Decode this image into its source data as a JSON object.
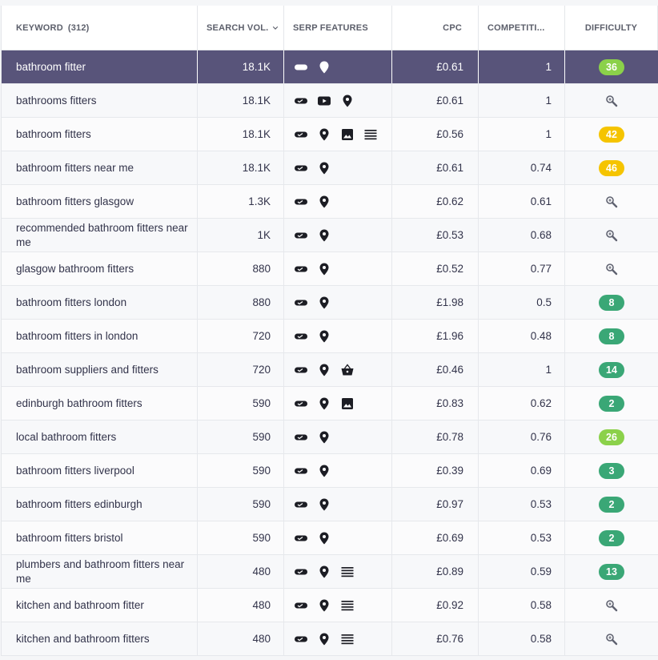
{
  "header": {
    "keyword_label": "KEYWORD",
    "keyword_count": "(312)",
    "search_vol_label": "SEARCH VOL.",
    "serp_label": "SERP FEATURES",
    "cpc_label": "CPC",
    "competition_label": "COMPETITI...",
    "difficulty_label": "DIFFICULTY"
  },
  "colors": {
    "selected_row": "#58547a",
    "badge_green_dark": "#3aa776",
    "badge_green_light": "#8bd14a",
    "badge_yellow": "#f5c400"
  },
  "rows": [
    {
      "keyword": "bathroom fitter",
      "volume": "18.1K",
      "serp": [
        "sitelinks-icon",
        "local-pack-icon"
      ],
      "cpc": "£0.61",
      "competition": "1",
      "difficulty": "36",
      "difficulty_color": "#8bd14a",
      "selected": true
    },
    {
      "keyword": "bathrooms fitters",
      "volume": "18.1K",
      "serp": [
        "sitelinks-icon",
        "video-icon",
        "local-pack-icon"
      ],
      "cpc": "£0.61",
      "competition": "1",
      "difficulty": "",
      "difficulty_color": ""
    },
    {
      "keyword": "bathroom fitters",
      "volume": "18.1K",
      "serp": [
        "sitelinks-icon",
        "local-pack-icon",
        "image-icon",
        "list-icon"
      ],
      "cpc": "£0.56",
      "competition": "1",
      "difficulty": "42",
      "difficulty_color": "#f5c400"
    },
    {
      "keyword": "bathroom fitters near me",
      "volume": "18.1K",
      "serp": [
        "sitelinks-icon",
        "local-pack-icon"
      ],
      "cpc": "£0.61",
      "competition": "0.74",
      "difficulty": "46",
      "difficulty_color": "#f5c400"
    },
    {
      "keyword": "bathroom fitters glasgow",
      "volume": "1.3K",
      "serp": [
        "sitelinks-icon",
        "local-pack-icon"
      ],
      "cpc": "£0.62",
      "competition": "0.61",
      "difficulty": "",
      "difficulty_color": ""
    },
    {
      "keyword": "recommended bathroom fitters near me",
      "volume": "1K",
      "serp": [
        "sitelinks-icon",
        "local-pack-icon"
      ],
      "cpc": "£0.53",
      "competition": "0.68",
      "difficulty": "",
      "difficulty_color": ""
    },
    {
      "keyword": "glasgow bathroom fitters",
      "volume": "880",
      "serp": [
        "sitelinks-icon",
        "local-pack-icon"
      ],
      "cpc": "£0.52",
      "competition": "0.77",
      "difficulty": "",
      "difficulty_color": ""
    },
    {
      "keyword": "bathroom fitters london",
      "volume": "880",
      "serp": [
        "sitelinks-icon",
        "local-pack-icon"
      ],
      "cpc": "£1.98",
      "competition": "0.5",
      "difficulty": "8",
      "difficulty_color": "#3aa776"
    },
    {
      "keyword": "bathroom fitters in london",
      "volume": "720",
      "serp": [
        "sitelinks-icon",
        "local-pack-icon"
      ],
      "cpc": "£1.96",
      "competition": "0.48",
      "difficulty": "8",
      "difficulty_color": "#3aa776"
    },
    {
      "keyword": "bathroom suppliers and fitters",
      "volume": "720",
      "serp": [
        "sitelinks-icon",
        "local-pack-icon",
        "shopping-icon"
      ],
      "cpc": "£0.46",
      "competition": "1",
      "difficulty": "14",
      "difficulty_color": "#3aa776"
    },
    {
      "keyword": "edinburgh bathroom fitters",
      "volume": "590",
      "serp": [
        "sitelinks-icon",
        "local-pack-icon",
        "image-icon"
      ],
      "cpc": "£0.83",
      "competition": "0.62",
      "difficulty": "2",
      "difficulty_color": "#3aa776"
    },
    {
      "keyword": "local bathroom fitters",
      "volume": "590",
      "serp": [
        "sitelinks-icon",
        "local-pack-icon"
      ],
      "cpc": "£0.78",
      "competition": "0.76",
      "difficulty": "26",
      "difficulty_color": "#8bd14a"
    },
    {
      "keyword": "bathroom fitters liverpool",
      "volume": "590",
      "serp": [
        "sitelinks-icon",
        "local-pack-icon"
      ],
      "cpc": "£0.39",
      "competition": "0.69",
      "difficulty": "3",
      "difficulty_color": "#3aa776"
    },
    {
      "keyword": "bathroom fitters edinburgh",
      "volume": "590",
      "serp": [
        "sitelinks-icon",
        "local-pack-icon"
      ],
      "cpc": "£0.97",
      "competition": "0.53",
      "difficulty": "2",
      "difficulty_color": "#3aa776"
    },
    {
      "keyword": "bathroom fitters bristol",
      "volume": "590",
      "serp": [
        "sitelinks-icon",
        "local-pack-icon"
      ],
      "cpc": "£0.69",
      "competition": "0.53",
      "difficulty": "2",
      "difficulty_color": "#3aa776"
    },
    {
      "keyword": "plumbers and bathroom fitters near me",
      "volume": "480",
      "serp": [
        "sitelinks-icon",
        "local-pack-icon",
        "list-icon"
      ],
      "cpc": "£0.89",
      "competition": "0.59",
      "difficulty": "13",
      "difficulty_color": "#3aa776"
    },
    {
      "keyword": "kitchen and bathroom fitter",
      "volume": "480",
      "serp": [
        "sitelinks-icon",
        "local-pack-icon",
        "list-icon"
      ],
      "cpc": "£0.92",
      "competition": "0.58",
      "difficulty": "",
      "difficulty_color": ""
    },
    {
      "keyword": "kitchen and bathroom fitters",
      "volume": "480",
      "serp": [
        "sitelinks-icon",
        "local-pack-icon",
        "list-icon"
      ],
      "cpc": "£0.76",
      "competition": "0.58",
      "difficulty": "",
      "difficulty_color": ""
    }
  ]
}
